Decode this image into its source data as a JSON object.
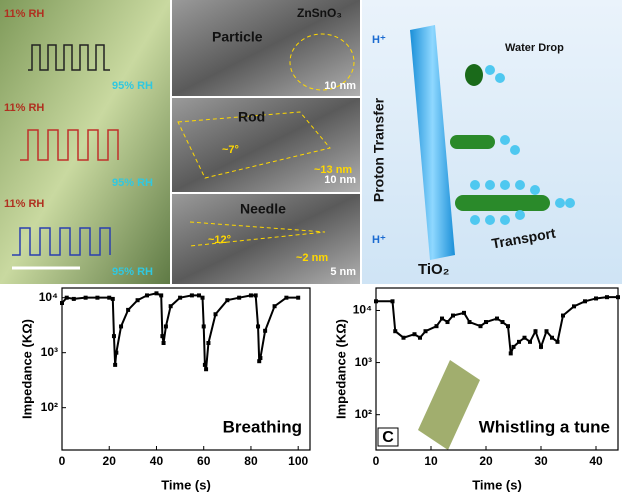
{
  "sem_labels": [
    {
      "low": "11% RH",
      "high": "95% RH"
    },
    {
      "low": "11% RH",
      "high": "95% RH"
    },
    {
      "low": "11% RH",
      "high": "95% RH"
    }
  ],
  "tem": [
    {
      "label": "Particle",
      "phase": "ZnSnO₃",
      "scale": "10 nm"
    },
    {
      "label": "Rod",
      "angle": "~7°",
      "width": "~13 nm",
      "scale": "10 nm"
    },
    {
      "label": "Needle",
      "angle": "~12°",
      "width": "~2 nm",
      "scale": "5 nm"
    }
  ],
  "schematic": {
    "h_top": "H⁺",
    "proton": "Proton Transfer",
    "water": "Water Drop",
    "tio2": "TiO₂",
    "transport": "Transport",
    "h_bottom": "H⁺"
  },
  "chart_data": [
    {
      "type": "line",
      "x_label": "Time (s)",
      "y_label": "Impedance (KΩ)",
      "annotation": "Breathing",
      "log_y": true,
      "color": "#000000",
      "xlim": [
        0,
        105
      ],
      "xticks": [
        0,
        20,
        40,
        60,
        80,
        100
      ],
      "ylim": [
        17,
        15000
      ],
      "yticks": [
        {
          "value": 100,
          "label": "10²"
        },
        {
          "value": 1000,
          "label": "10³"
        },
        {
          "value": 10000,
          "label": "10⁴"
        }
      ],
      "x": [
        0,
        2,
        5,
        10,
        15,
        20,
        21.5,
        22,
        22.5,
        23,
        25,
        28,
        32,
        36,
        40,
        42,
        42.5,
        43,
        44,
        46,
        50,
        55,
        58,
        59.5,
        60,
        60.5,
        61,
        62,
        65,
        70,
        75,
        80,
        82,
        83,
        83.5,
        84,
        86,
        90,
        95,
        100
      ],
      "series": [
        {
          "values": [
            8000,
            10000,
            9500,
            10000,
            10000,
            10000,
            9500,
            2000,
            600,
            1000,
            3000,
            6000,
            9000,
            11000,
            12000,
            11000,
            2000,
            1500,
            3000,
            7000,
            10000,
            11000,
            11000,
            10000,
            3000,
            600,
            500,
            1500,
            5000,
            9000,
            10000,
            11000,
            11000,
            3000,
            700,
            800,
            2500,
            7000,
            10000,
            10000
          ]
        }
      ]
    },
    {
      "type": "line",
      "x_label": "Time (s)",
      "y_label": "Impedance (KΩ)",
      "annotation": "Whistling a tune",
      "panel": "C",
      "log_y": true,
      "color": "#000000",
      "xlim": [
        0,
        44
      ],
      "xticks": [
        0,
        10,
        20,
        30,
        40
      ],
      "ylim": [
        21,
        27000
      ],
      "yticks": [
        {
          "value": 100,
          "label": "10²"
        },
        {
          "value": 1000,
          "label": "10³"
        },
        {
          "value": 10000,
          "label": "10⁴"
        }
      ],
      "x": [
        0,
        3,
        3.5,
        5,
        7,
        8,
        9,
        11,
        12,
        13,
        14,
        16,
        17,
        19,
        20,
        22,
        23,
        24,
        24.5,
        25,
        26,
        27,
        28,
        29,
        30,
        31,
        32,
        33,
        34,
        36,
        38,
        40,
        42,
        44
      ],
      "series": [
        {
          "values": [
            15000,
            15000,
            4000,
            3000,
            3500,
            3000,
            4000,
            5000,
            7000,
            6000,
            8000,
            9000,
            6000,
            5000,
            6000,
            7000,
            6000,
            5000,
            1500,
            2000,
            2500,
            3000,
            2500,
            4000,
            2000,
            4000,
            3000,
            2500,
            8000,
            12000,
            15000,
            17000,
            18000,
            18000
          ]
        }
      ]
    }
  ]
}
